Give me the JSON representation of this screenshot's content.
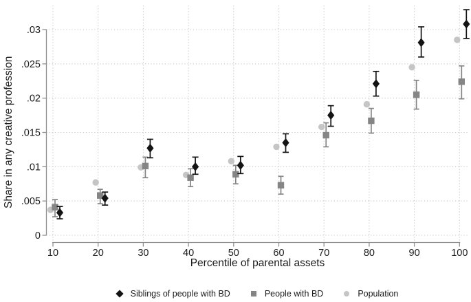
{
  "chart_data": {
    "type": "scatter",
    "title": "",
    "xlabel": "Percentile of parental assets",
    "ylabel": "Share in any creative profession",
    "xlim": [
      8,
      103
    ],
    "ylim": [
      0,
      0.03
    ],
    "grid": "dotted-both-axes",
    "legend_position": "bottom-center",
    "xticks": {
      "values": [
        10,
        20,
        30,
        40,
        50,
        60,
        70,
        80,
        90,
        100
      ],
      "labels": [
        "10",
        "20",
        "30",
        "40",
        "50",
        "60",
        "70",
        "80",
        "90",
        "100"
      ]
    },
    "yticks": {
      "values": [
        0,
        0.005,
        0.01,
        0.015,
        0.02,
        0.025,
        0.03
      ],
      "labels": [
        "0",
        ".005",
        ".01",
        ".015",
        ".02",
        ".025",
        ".03"
      ]
    },
    "categories": [
      10,
      20,
      30,
      40,
      50,
      60,
      70,
      80,
      90,
      100
    ],
    "series": [
      {
        "name": "Siblings of people with BD",
        "marker": "diamond",
        "color": "#141414",
        "has_error_bars": true,
        "x": [
          10,
          20,
          30,
          40,
          50,
          60,
          70,
          80,
          90,
          100
        ],
        "y": [
          0.0033,
          0.0054,
          0.0127,
          0.01,
          0.0102,
          0.0135,
          0.0175,
          0.0221,
          0.0281,
          0.0308
        ],
        "ci_low": [
          0.0024,
          0.0044,
          0.0113,
          0.0089,
          0.009,
          0.0121,
          0.0159,
          0.0203,
          0.026,
          0.0287
        ],
        "ci_high": [
          0.0042,
          0.0063,
          0.014,
          0.0114,
          0.0115,
          0.0148,
          0.0189,
          0.0239,
          0.0304,
          0.0329
        ]
      },
      {
        "name": "People with BD",
        "marker": "square",
        "color": "#858585",
        "has_error_bars": true,
        "x": [
          10,
          20,
          30,
          40,
          50,
          60,
          70,
          80,
          90,
          100
        ],
        "y": [
          0.0041,
          0.0058,
          0.0101,
          0.0084,
          0.0089,
          0.0073,
          0.0146,
          0.0167,
          0.0205,
          0.0224
        ],
        "ci_low": [
          0.0027,
          0.0046,
          0.0084,
          0.0071,
          0.0075,
          0.006,
          0.0129,
          0.0149,
          0.0184,
          0.0199
        ],
        "ci_high": [
          0.0052,
          0.0067,
          0.0114,
          0.0097,
          0.0102,
          0.0086,
          0.0164,
          0.0185,
          0.0226,
          0.0247
        ]
      },
      {
        "name": "Population",
        "marker": "circle",
        "color": "#c5c5c5",
        "has_error_bars": false,
        "x": [
          10,
          20,
          30,
          40,
          50,
          60,
          70,
          80,
          90,
          100
        ],
        "y": [
          0.0037,
          0.0077,
          0.0099,
          0.0088,
          0.0108,
          0.0129,
          0.0158,
          0.0191,
          0.0245,
          0.0285
        ]
      }
    ],
    "colors": {
      "background": "#ffffff",
      "gridline": "#c9c9c9",
      "axis_line": "#8f8f8f",
      "text": "#1a1a1a"
    }
  }
}
